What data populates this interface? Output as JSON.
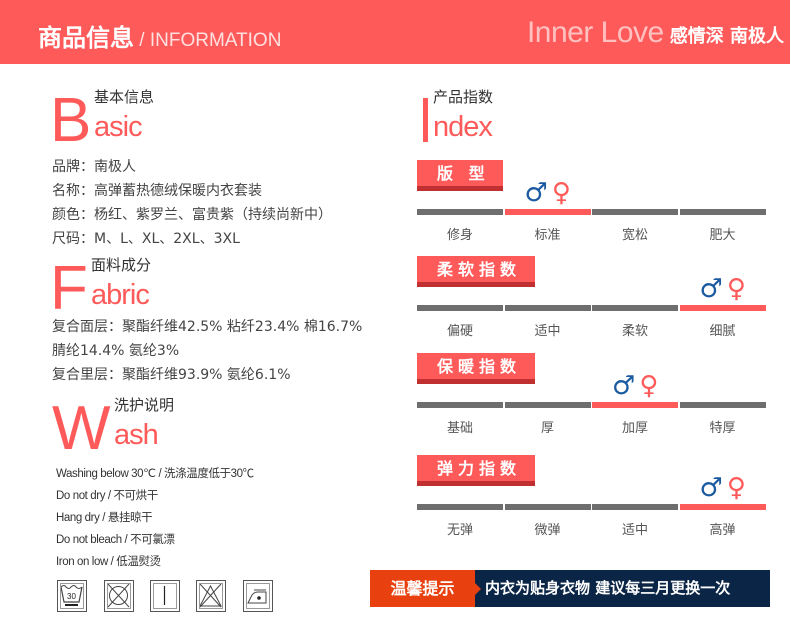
{
  "header": {
    "title_cn": "商品信息",
    "title_sep": " / ",
    "title_en": "INFORMATION",
    "brand_en": "Inner Love",
    "brand_cn": "感情深 南极人"
  },
  "basic": {
    "letter": "B",
    "rest": "asic",
    "cn": "基本信息",
    "lines": [
      "品牌：南极人",
      "名称：高弹蓄热德绒保暖内衣套装",
      "颜色：杨红、紫罗兰、富贵紫（持续尚新中）",
      "尺码：M、L、XL、2XL、3XL"
    ]
  },
  "fabric": {
    "letter": "F",
    "rest": "abric",
    "cn": "面料成分",
    "lines": [
      "复合面层：聚酯纤维42.5% 粘纤23.4% 棉16.7%",
      "腈纶14.4% 氨纶3%",
      "复合里层：聚酯纤维93.9% 氨纶6.1%"
    ]
  },
  "wash": {
    "letter": "W",
    "rest": "ash",
    "cn": "洗护说明",
    "lines": [
      "Washing below 30℃ / 洗涤温度低于30℃",
      "Do not dry / 不可烘干",
      "Hang dry / 悬挂晾干",
      "Do not bleach / 不可氯漂",
      "Iron on low / 低温熨烫"
    ],
    "icons": [
      {
        "name": "wash-30-icon",
        "text": "30"
      },
      {
        "name": "do-not-tumble-dry-icon"
      },
      {
        "name": "hang-dry-icon"
      },
      {
        "name": "do-not-bleach-icon"
      },
      {
        "name": "iron-low-icon"
      }
    ]
  },
  "index": {
    "letter": "I",
    "rest": "ndex",
    "cn": "产品指数",
    "male_symbol": "♂",
    "female_symbol": "♀",
    "accent": "#ff5a5a",
    "inactive": "#6e6e6e",
    "groups": [
      {
        "title": "版 型",
        "labels": [
          "修身",
          "标准",
          "宽松",
          "肥大"
        ],
        "selected": 1
      },
      {
        "title": "柔软指数",
        "labels": [
          "偏硬",
          "适中",
          "柔软",
          "细腻"
        ],
        "selected": 3
      },
      {
        "title": "保暖指数",
        "labels": [
          "基础",
          "厚",
          "加厚",
          "特厚"
        ],
        "selected": 2
      },
      {
        "title": "弹力指数",
        "labels": [
          "无弹",
          "微弹",
          "适中",
          "高弹"
        ],
        "selected": 3
      }
    ]
  },
  "notice": {
    "label": "温馨提示",
    "text": "内衣为贴身衣物  建议每三月更换一次"
  }
}
